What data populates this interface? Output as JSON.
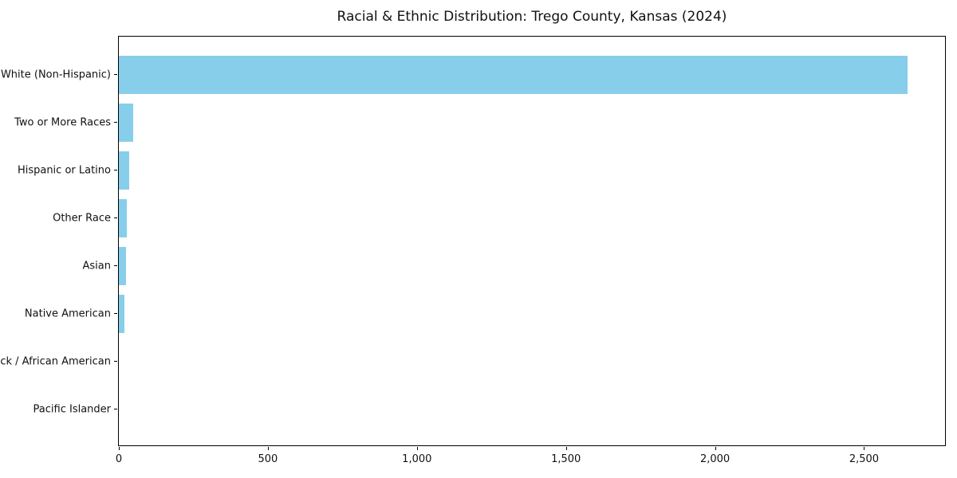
{
  "chart_data": {
    "type": "bar",
    "orientation": "horizontal",
    "title": "Racial & Ethnic Distribution: Trego County, Kansas (2024)",
    "categories": [
      "White (Non-Hispanic)",
      "Two or More Races",
      "Hispanic or Latino",
      "Other Race",
      "Asian",
      "Native American",
      "Black / African American",
      "Pacific Islander"
    ],
    "values": [
      2645,
      47,
      35,
      28,
      24,
      19,
      0,
      0
    ],
    "xlabel": "",
    "ylabel": "",
    "xlim": [
      0,
      2777
    ],
    "x_ticks": [
      {
        "label": "0",
        "value": 0
      },
      {
        "label": "500",
        "value": 500
      },
      {
        "label": "1,000",
        "value": 1000
      },
      {
        "label": "1,500",
        "value": 1500
      },
      {
        "label": "2,000",
        "value": 2000
      },
      {
        "label": "2,500",
        "value": 2500
      }
    ],
    "grid": false,
    "legend": false,
    "bar_color": "#87CEEB",
    "background_color": "#FFFFFF"
  }
}
